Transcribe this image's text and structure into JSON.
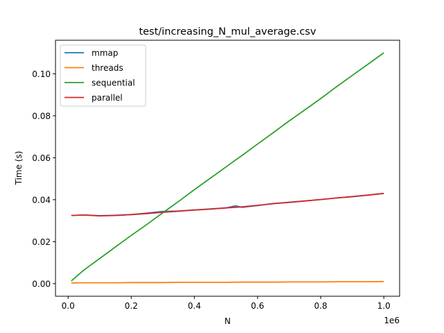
{
  "chart_data": {
    "type": "line",
    "title": "test/increasing_N_mul_average.csv",
    "xlabel": "N",
    "ylabel": "Time (s)",
    "x_offset_label": "1e6",
    "xlim": [
      -0.04,
      1.05
    ],
    "ylim": [
      -0.006,
      0.116
    ],
    "xticks": [
      0.0,
      0.2,
      0.4,
      0.6,
      0.8,
      1.0
    ],
    "xtick_labels": [
      "0.0",
      "0.2",
      "0.4",
      "0.6",
      "0.8",
      "1.0"
    ],
    "yticks": [
      0.0,
      0.02,
      0.04,
      0.06,
      0.08,
      0.1
    ],
    "ytick_labels": [
      "0.00",
      "0.02",
      "0.04",
      "0.06",
      "0.08",
      "0.10"
    ],
    "grid": false,
    "legend_position": "top-left",
    "x": [
      0.01,
      0.05,
      0.1,
      0.15,
      0.2,
      0.25,
      0.3,
      0.35,
      0.4,
      0.45,
      0.5,
      0.53,
      0.55,
      0.6,
      0.65,
      0.7,
      0.75,
      0.8,
      0.85,
      0.9,
      0.95,
      1.0
    ],
    "series": [
      {
        "name": "mmap",
        "color": "#1f77b4",
        "values": [
          0.0325,
          0.0327,
          0.0324,
          0.0326,
          0.0329,
          0.0336,
          0.0344,
          0.0346,
          0.0351,
          0.0356,
          0.0361,
          0.0371,
          0.0364,
          0.0372,
          0.0382,
          0.0387,
          0.0394,
          0.0401,
          0.0408,
          0.0414,
          0.0422,
          0.043
        ]
      },
      {
        "name": "threads",
        "color": "#ff7f0e",
        "values": [
          0.0003,
          0.0004,
          0.0004,
          0.0004,
          0.0005,
          0.0005,
          0.0005,
          0.0006,
          0.0006,
          0.0006,
          0.0006,
          0.0007,
          0.0007,
          0.0007,
          0.0007,
          0.0008,
          0.0008,
          0.0008,
          0.0009,
          0.0009,
          0.0009,
          0.001
        ]
      },
      {
        "name": "sequential",
        "color": "#2ca02c",
        "values": [
          0.0013,
          0.0065,
          0.012,
          0.0175,
          0.023,
          0.0283,
          0.0338,
          0.0392,
          0.0448,
          0.0502,
          0.0556,
          0.0589,
          0.061,
          0.0665,
          0.072,
          0.0775,
          0.0828,
          0.0882,
          0.0938,
          0.0992,
          0.1046,
          0.11
        ]
      },
      {
        "name": "parallel",
        "color": "#d62728",
        "values": [
          0.0325,
          0.0327,
          0.0323,
          0.0325,
          0.0329,
          0.0334,
          0.034,
          0.0345,
          0.0351,
          0.0355,
          0.0361,
          0.0364,
          0.0366,
          0.0373,
          0.0381,
          0.0388,
          0.0394,
          0.0401,
          0.0408,
          0.0415,
          0.0422,
          0.043
        ]
      }
    ]
  }
}
